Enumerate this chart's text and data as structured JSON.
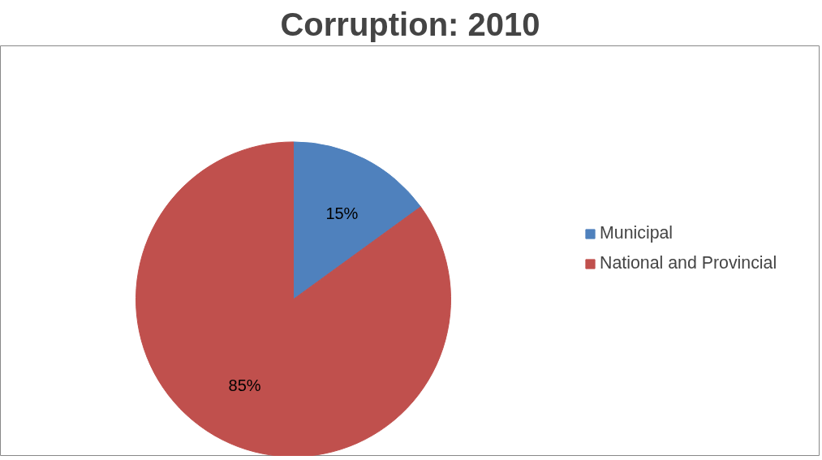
{
  "chart_data": {
    "type": "pie",
    "title": "Corruption: 2010",
    "categories": [
      "Municipal",
      "National and Provincial"
    ],
    "values": [
      15,
      85
    ],
    "colors": [
      "#4f81bd",
      "#c0504d"
    ],
    "value_labels": [
      "15%",
      "85%"
    ],
    "legend": "right"
  }
}
